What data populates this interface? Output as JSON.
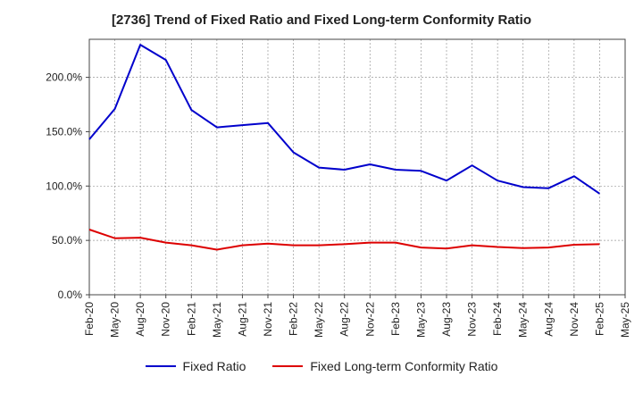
{
  "chart_data": {
    "type": "line",
    "title": "[2736]  Trend of Fixed Ratio and Fixed Long-term Conformity Ratio",
    "xlabel": "",
    "ylabel": "",
    "x": [
      "Feb-20",
      "May-20",
      "Aug-20",
      "Nov-20",
      "Feb-21",
      "May-21",
      "Aug-21",
      "Nov-21",
      "Feb-22",
      "May-22",
      "Aug-22",
      "Nov-22",
      "Feb-23",
      "May-23",
      "Aug-23",
      "Nov-23",
      "Feb-24",
      "May-24",
      "Aug-24",
      "Nov-24",
      "Feb-25"
    ],
    "x_ticks": [
      "Feb-20",
      "May-20",
      "Aug-20",
      "Nov-20",
      "Feb-21",
      "May-21",
      "Aug-21",
      "Nov-21",
      "Feb-22",
      "May-22",
      "Aug-22",
      "Nov-22",
      "Feb-23",
      "May-23",
      "Aug-23",
      "Nov-23",
      "Feb-24",
      "May-24",
      "Aug-24",
      "Nov-24",
      "Feb-25",
      "May-25"
    ],
    "y_ticks": [
      "0.0%",
      "50.0%",
      "100.0%",
      "150.0%",
      "200.0%"
    ],
    "y_tick_values": [
      0,
      50,
      100,
      150,
      200
    ],
    "ylim": [
      0,
      235
    ],
    "grid": true,
    "legend_position": "bottom",
    "series": [
      {
        "name": "Fixed Ratio",
        "color": "#0000cc",
        "values": [
          143,
          171,
          230,
          216,
          170,
          154,
          156,
          158,
          131,
          117,
          115,
          120,
          115,
          114,
          105,
          119,
          105,
          99,
          98,
          109,
          93
        ]
      },
      {
        "name": "Fixed Long-term Conformity Ratio",
        "color": "#dd0000",
        "values": [
          60,
          52,
          52.5,
          48,
          45.5,
          41.5,
          45.5,
          47,
          45.5,
          45.5,
          46.5,
          48,
          48,
          43.5,
          42.5,
          45.5,
          44,
          43,
          43.5,
          46,
          46.5
        ]
      }
    ]
  }
}
